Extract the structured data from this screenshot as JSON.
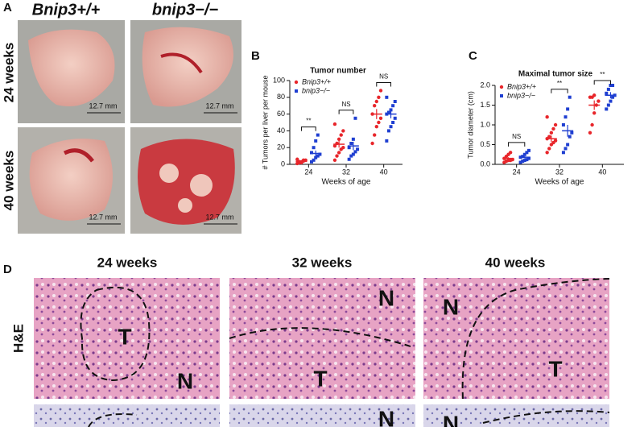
{
  "figure": {
    "panel_a": "A",
    "panel_b": "B",
    "panel_c": "C",
    "panel_d": "D",
    "genotype_wt": "Bnip3+/+",
    "genotype_ko": "bnip3−/−",
    "row_24": "24 weeks",
    "row_40": "40 weeks",
    "scale_bars": [
      "12.7 mm",
      "12.7 mm",
      "12.7 mm",
      "12.7 mm"
    ],
    "histo_headings": [
      "24 weeks",
      "32 weeks",
      "40 weeks"
    ],
    "stain_label": "H&E",
    "histo_marks": [
      "T",
      "N",
      "N",
      "T",
      "N",
      "T"
    ],
    "lower_marks": [
      "N",
      "N"
    ]
  },
  "chart_data": [
    {
      "type": "dot",
      "title": "Tumor number",
      "xlabel": "Weeks of age",
      "ylabel": "# Tumors per liver per mouse",
      "categories": [
        "24",
        "32",
        "40"
      ],
      "ylim": [
        0,
        100
      ],
      "yticks": [
        0,
        20,
        40,
        60,
        80,
        100
      ],
      "legend": "upper left",
      "significance": [
        "**",
        "NS",
        "NS"
      ],
      "series": [
        {
          "name": "Bnip3+/+",
          "color": "#e8262b",
          "marker": "circle",
          "values": [
            [
              1,
              2,
              3,
              4,
              5,
              6,
              3,
              2,
              5
            ],
            [
              5,
              10,
              14,
              18,
              20,
              22,
              25,
              30,
              35,
              40,
              48
            ],
            [
              25,
              35,
              45,
              50,
              55,
              60,
              70,
              75,
              80,
              88
            ]
          ],
          "means": [
            3.5,
            24,
            60
          ],
          "sems": [
            0.6,
            4,
            6
          ]
        },
        {
          "name": "bnip3−/−",
          "color": "#1f3fd1",
          "marker": "square",
          "values": [
            [
              3,
              5,
              8,
              10,
              12,
              14,
              20,
              28,
              35
            ],
            [
              6,
              10,
              12,
              15,
              18,
              20,
              25,
              30,
              55
            ],
            [
              28,
              40,
              45,
              50,
              55,
              60,
              62,
              65,
              70,
              75,
              80
            ]
          ],
          "means": [
            13,
            22,
            60
          ],
          "sems": [
            3.5,
            5,
            5
          ]
        }
      ]
    },
    {
      "type": "dot",
      "title": "Maximal tumor size",
      "xlabel": "Weeks of age",
      "ylabel": "Tumor diameter (cm)",
      "categories": [
        "24",
        "32",
        "40"
      ],
      "ylim": [
        0,
        2
      ],
      "yticks": [
        {
          "value": 0,
          "label": "0.0"
        },
        {
          "value": 0.5,
          "label": "0.5"
        },
        {
          "value": 1,
          "label": "1.0"
        },
        {
          "value": 1.5,
          "label": "1.5"
        },
        {
          "value": 2,
          "label": "2.0"
        }
      ],
      "legend": "upper left",
      "significance": [
        "NS",
        "**",
        "**"
      ],
      "series": [
        {
          "name": "Bnip3+/+",
          "color": "#e8262b",
          "marker": "circle",
          "values": [
            [
              0.05,
              0.08,
              0.1,
              0.1,
              0.12,
              0.15,
              0.2,
              0.25,
              0.3
            ],
            [
              0.3,
              0.4,
              0.5,
              0.55,
              0.6,
              0.65,
              0.7,
              0.8,
              0.9,
              1.0,
              1.2
            ],
            [
              0.8,
              1.0,
              1.3,
              1.5,
              1.6,
              1.7,
              1.7,
              1.75
            ]
          ],
          "means": [
            0.15,
            0.65,
            1.5
          ],
          "sems": [
            0.03,
            0.08,
            0.12
          ]
        },
        {
          "name": "bnip3−/−",
          "color": "#1f3fd1",
          "marker": "square",
          "values": [
            [
              0.05,
              0.08,
              0.1,
              0.12,
              0.15,
              0.18,
              0.2,
              0.25,
              0.3,
              0.35
            ],
            [
              0.3,
              0.4,
              0.5,
              0.7,
              0.8,
              1.0,
              1.2,
              1.4,
              1.7
            ],
            [
              1.4,
              1.5,
              1.6,
              1.7,
              1.75,
              1.8,
              1.9,
              2.0,
              2.0
            ]
          ],
          "means": [
            0.18,
            0.85,
            1.75
          ],
          "sems": [
            0.03,
            0.15,
            0.08
          ]
        }
      ]
    }
  ]
}
